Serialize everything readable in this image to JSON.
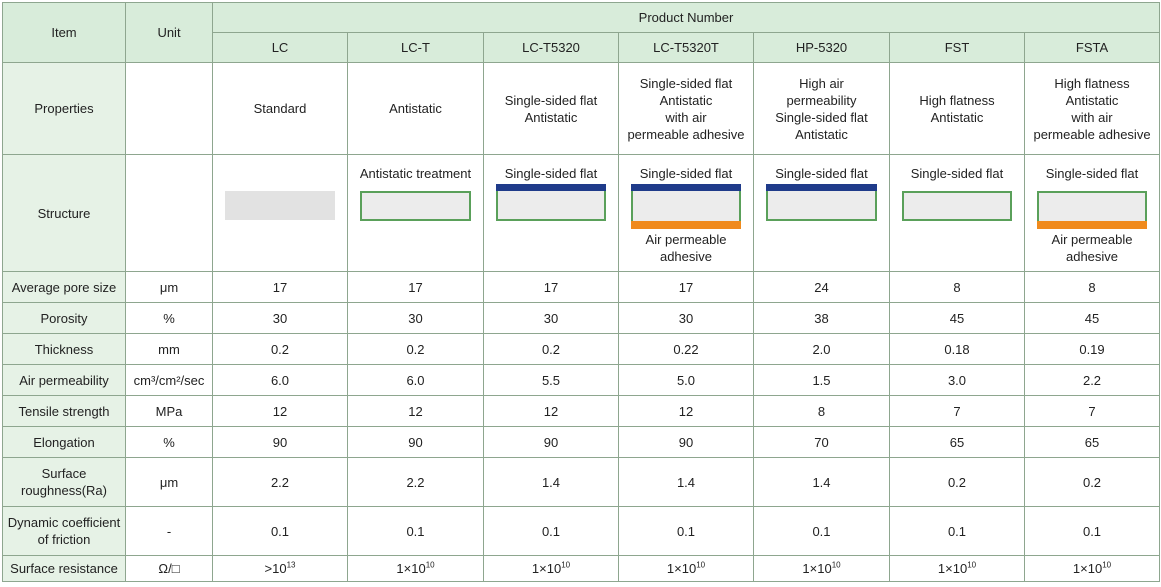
{
  "header": {
    "item": "Item",
    "unit": "Unit",
    "product_number": "Product Number",
    "models": [
      "LC",
      "LC-T",
      "LC-T5320",
      "LC-T5320T",
      "HP-5320",
      "FST",
      "FSTA"
    ]
  },
  "properties": {
    "label": "Properties",
    "unit": "",
    "values": [
      "Standard",
      "Antistatic",
      "Single-sided flat\nAntistatic",
      "Single-sided flat\nAntistatic\nwith air\npermeable adhesive",
      "High air\npermeability\nSingle-sided flat\nAntistatic",
      "High flatness\nAntistatic",
      "High flatness\nAntistatic\nwith air\npermeable adhesive"
    ]
  },
  "structure": {
    "label": "Structure",
    "top_labels": [
      "",
      "Antistatic treatment",
      "Single-sided flat",
      "Single-sided flat",
      "Single-sided flat",
      "Single-sided flat",
      "Single-sided flat"
    ],
    "bottom_labels": [
      "",
      "",
      "",
      "Air permeable\nadhesive",
      "",
      "",
      "Air permeable\nadhesive"
    ],
    "colors": {
      "film": "#1f3b8a",
      "adhesive": "#f08a1d",
      "antistatic": "#5aa05a",
      "body": "#ececec"
    }
  },
  "rows": [
    {
      "label": "Average pore size",
      "unit": "μm",
      "values": [
        "17",
        "17",
        "17",
        "17",
        "24",
        "8",
        "8"
      ]
    },
    {
      "label": "Porosity",
      "unit": "%",
      "values": [
        "30",
        "30",
        "30",
        "30",
        "38",
        "45",
        "45"
      ]
    },
    {
      "label": "Thickness",
      "unit": "mm",
      "values": [
        "0.2",
        "0.2",
        "0.2",
        "0.22",
        "2.0",
        "0.18",
        "0.19"
      ]
    },
    {
      "label": "Air permeability",
      "unit": "cm³/cm²/sec",
      "values": [
        "6.0",
        "6.0",
        "5.5",
        "5.0",
        "1.5",
        "3.0",
        "2.2"
      ]
    },
    {
      "label": "Tensile strength",
      "unit": "MPa",
      "values": [
        "12",
        "12",
        "12",
        "12",
        "8",
        "7",
        "7"
      ]
    },
    {
      "label": "Elongation",
      "unit": "%",
      "values": [
        "90",
        "90",
        "90",
        "90",
        "70",
        "65",
        "65"
      ]
    },
    {
      "label": "Surface\nroughness(Ra)",
      "unit": "μm",
      "values": [
        "2.2",
        "2.2",
        "1.4",
        "1.4",
        "1.4",
        "0.2",
        "0.2"
      ]
    },
    {
      "label": "Dynamic coefficient\nof friction",
      "unit": "-",
      "values": [
        "0.1",
        "0.1",
        "0.1",
        "0.1",
        "0.1",
        "0.1",
        "0.1"
      ]
    }
  ],
  "surface_resistance": {
    "label": "Surface resistance",
    "unit": "Ω/□",
    "values": [
      {
        "prefix": ">10",
        "exp": "13"
      },
      {
        "prefix": "1×10",
        "exp": "10"
      },
      {
        "prefix": "1×10",
        "exp": "10"
      },
      {
        "prefix": "1×10",
        "exp": "10"
      },
      {
        "prefix": "1×10",
        "exp": "10"
      },
      {
        "prefix": "1×10",
        "exp": "10"
      },
      {
        "prefix": "1×10",
        "exp": "10"
      }
    ]
  }
}
